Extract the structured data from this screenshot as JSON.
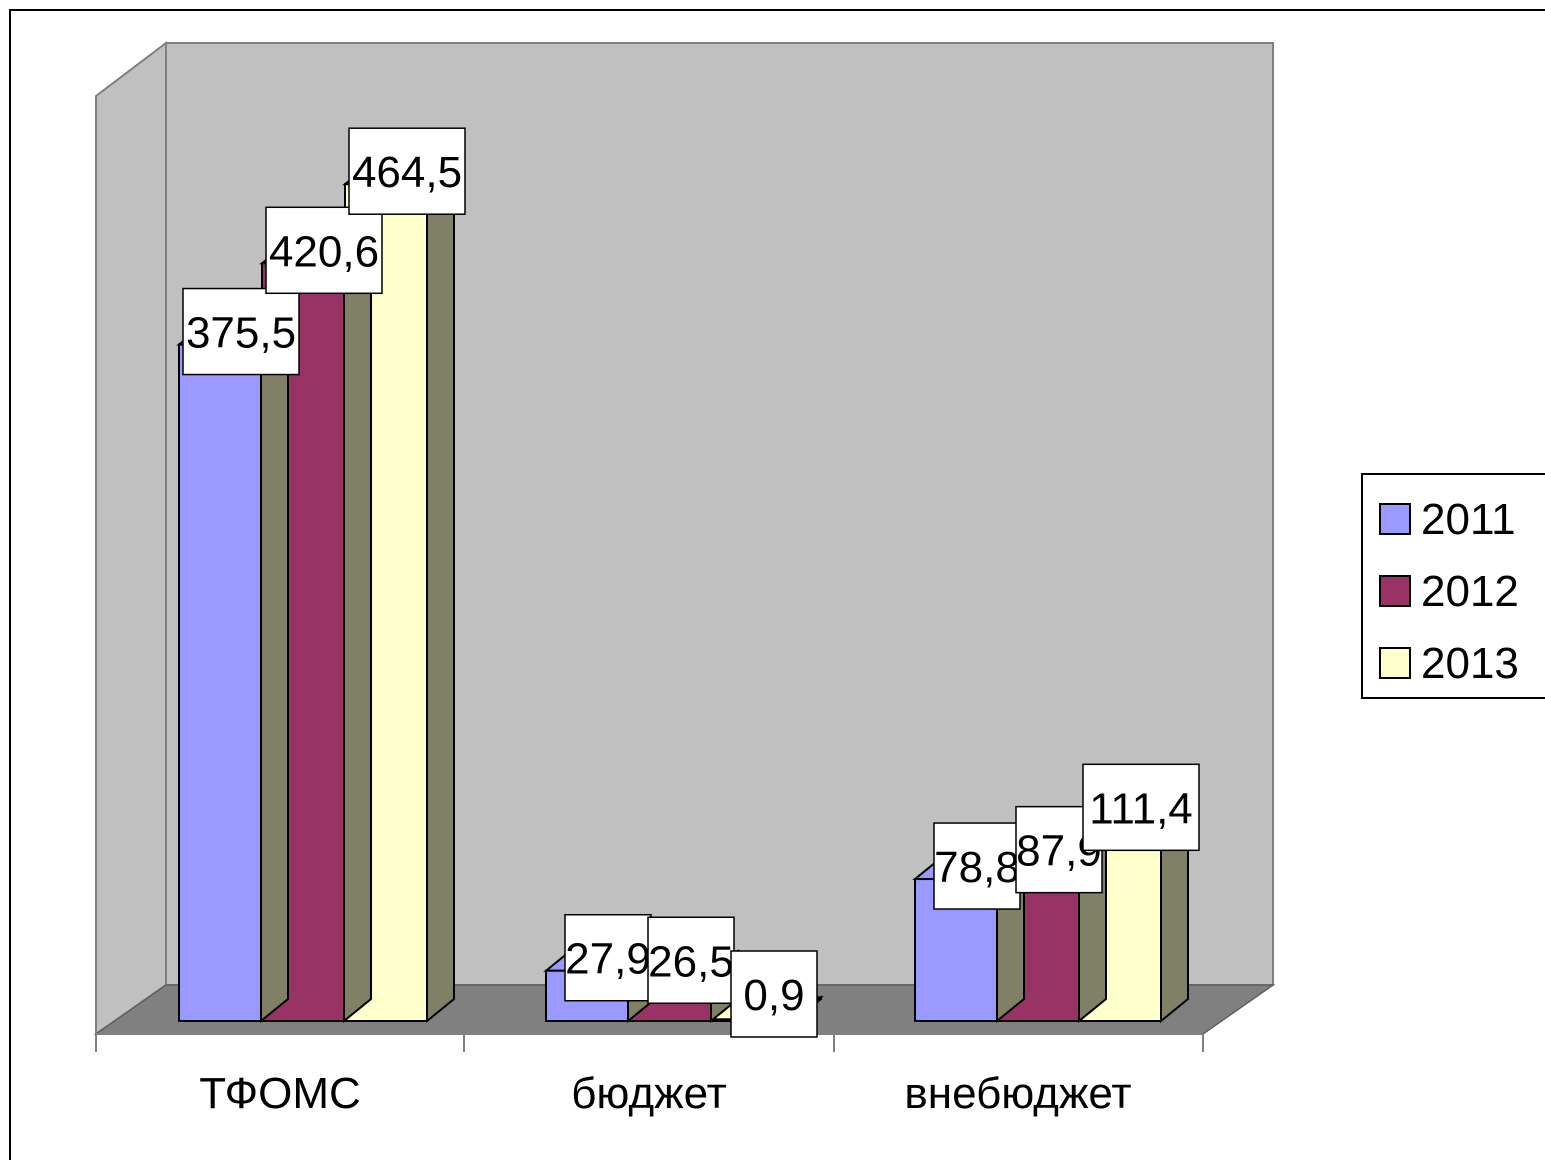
{
  "chart_data": {
    "type": "bar",
    "title": "",
    "xlabel": "",
    "ylabel": "",
    "categories": [
      "ТФОМС",
      "бюджет",
      "внебюджет"
    ],
    "series": [
      {
        "name": "2011",
        "values": [
          375.5,
          27.9,
          78.8
        ],
        "labels": [
          "375,5",
          "27,9",
          "78,8"
        ],
        "color": "#9999ff"
      },
      {
        "name": "2012",
        "values": [
          420.6,
          26.5,
          87.9
        ],
        "labels": [
          "420,6",
          "26,5",
          "87,9"
        ],
        "color": "#993366"
      },
      {
        "name": "2013",
        "values": [
          464.5,
          0.9,
          111.4
        ],
        "labels": [
          "464,5",
          "0,9",
          "111,4"
        ],
        "color": "#ffffcc"
      }
    ],
    "ylim": [
      0,
      500
    ],
    "grid": false,
    "legend": "right",
    "style": "3d clustered column",
    "colors": {
      "wall": "#c0c0c0",
      "floor": "#808080",
      "bar_side": "#808066",
      "outline": "#000000"
    }
  }
}
